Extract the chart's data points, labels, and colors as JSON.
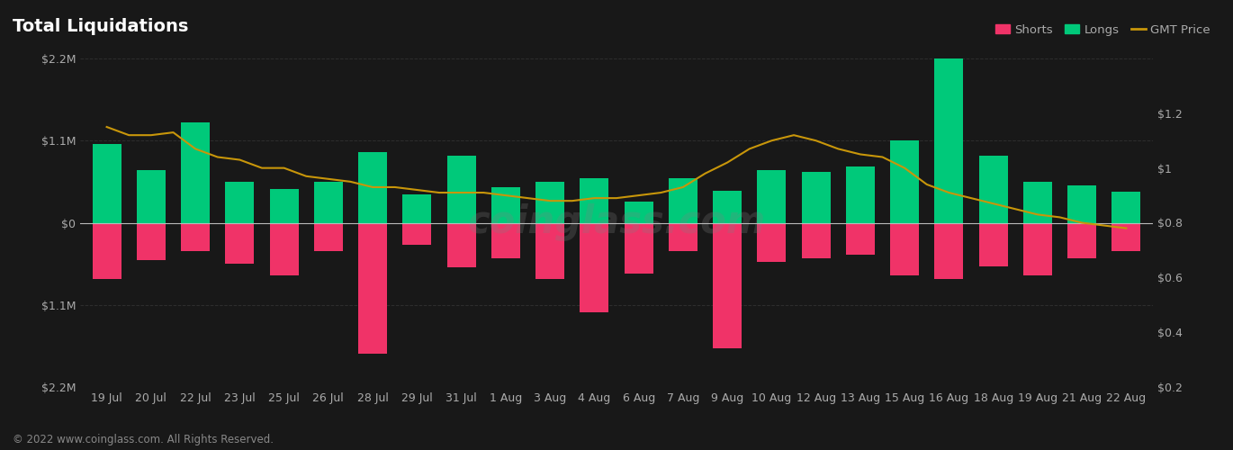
{
  "title": "Total Liquidations",
  "bg_color": "#181818",
  "plot_bg_color": "#181818",
  "grid_color": "#2e2e2e",
  "zero_line_color": "#bbbbbb",
  "short_color": "#f03368",
  "long_color": "#00c97a",
  "price_color": "#c8960a",
  "footer": "© 2022 www.coinglass.com. All Rights Reserved.",
  "watermark": "coinglass.com",
  "x_labels": [
    "19 Jul",
    "20 Jul",
    "22 Jul",
    "23 Jul",
    "25 Jul",
    "26 Jul",
    "28 Jul",
    "29 Jul",
    "31 Jul",
    "1 Aug",
    "3 Aug",
    "4 Aug",
    "6 Aug",
    "7 Aug",
    "9 Aug",
    "10 Aug",
    "12 Aug",
    "13 Aug",
    "15 Aug",
    "16 Aug",
    "18 Aug",
    "19 Aug",
    "21 Aug",
    "22 Aug"
  ],
  "longs": [
    1050000,
    700000,
    1350000,
    550000,
    450000,
    550000,
    950000,
    380000,
    900000,
    480000,
    550000,
    600000,
    280000,
    600000,
    430000,
    700000,
    680000,
    750000,
    1100000,
    2200000,
    900000,
    550000,
    500000,
    420000
  ],
  "shorts": [
    -750000,
    -500000,
    -380000,
    -550000,
    -700000,
    -380000,
    -1750000,
    -300000,
    -600000,
    -480000,
    -750000,
    -1200000,
    -680000,
    -380000,
    -1680000,
    -520000,
    -480000,
    -430000,
    -700000,
    -750000,
    -580000,
    -700000,
    -480000,
    -380000
  ],
  "gmt_price": [
    1.15,
    1.12,
    1.12,
    1.13,
    1.07,
    1.04,
    1.03,
    1.0,
    1.0,
    0.97,
    0.96,
    0.95,
    0.93,
    0.93,
    0.92,
    0.91,
    0.91,
    0.91,
    0.9,
    0.89,
    0.88,
    0.88,
    0.89,
    0.89,
    0.9,
    0.91,
    0.93,
    0.98,
    1.02,
    1.07,
    1.1,
    1.12,
    1.1,
    1.07,
    1.05,
    1.04,
    1.0,
    0.94,
    0.91,
    0.89,
    0.87,
    0.85,
    0.83,
    0.82,
    0.8,
    0.79,
    0.78
  ],
  "ylim": [
    -2200000,
    2200000
  ],
  "price_ylim": [
    0.2,
    1.4
  ],
  "yticks_left": [
    -2200000,
    -1100000,
    0,
    1100000,
    2200000
  ],
  "yticks_right": [
    0.2,
    0.4,
    0.6,
    0.8,
    1.0,
    1.2
  ],
  "legend_labels": [
    "Shorts",
    "Longs",
    "GMT Price"
  ],
  "title_color": "#ffffff",
  "tick_color": "#aaaaaa",
  "tick_fontsize": 9,
  "title_fontsize": 14,
  "bar_width": 0.65
}
